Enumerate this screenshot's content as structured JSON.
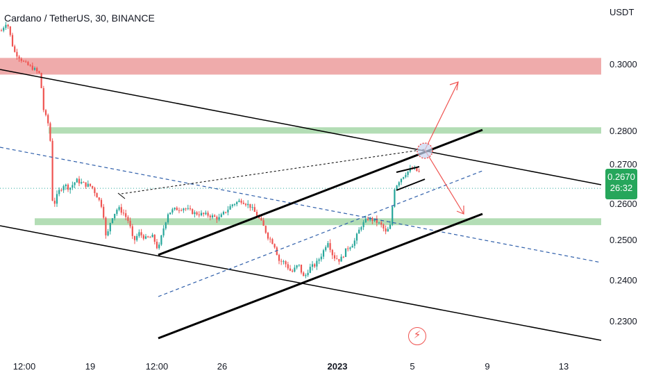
{
  "chart_data": {
    "type": "candlestick",
    "title": "Cardano / TetherUS, 30, BINANCE",
    "currency": "USDT",
    "y_ticks": [
      "0.3000",
      "0.2800",
      "0.2700",
      "0.2600",
      "0.2500",
      "0.2400",
      "0.2300"
    ],
    "x_ticks": [
      {
        "label": "12:00",
        "bold": false
      },
      {
        "label": "19",
        "bold": false
      },
      {
        "label": "12:00",
        "bold": false
      },
      {
        "label": "26",
        "bold": false
      },
      {
        "label": "2023",
        "bold": true
      },
      {
        "label": "5",
        "bold": false
      },
      {
        "label": "9",
        "bold": false
      },
      {
        "label": "13",
        "bold": false
      }
    ],
    "current_price": "0.2670",
    "countdown": "26:32",
    "zones": [
      {
        "type": "resistance",
        "low": 0.297,
        "high": 0.302,
        "color": "#e57373"
      },
      {
        "type": "support",
        "low": 0.2793,
        "high": 0.2812,
        "color": "#81c784"
      },
      {
        "type": "support",
        "low": 0.2542,
        "high": 0.2561,
        "color": "#81c784"
      }
    ],
    "colors": {
      "up": "#26a69a",
      "down": "#ef5350",
      "badge": "#26a65b"
    },
    "event_icon": "lightning-icon"
  }
}
